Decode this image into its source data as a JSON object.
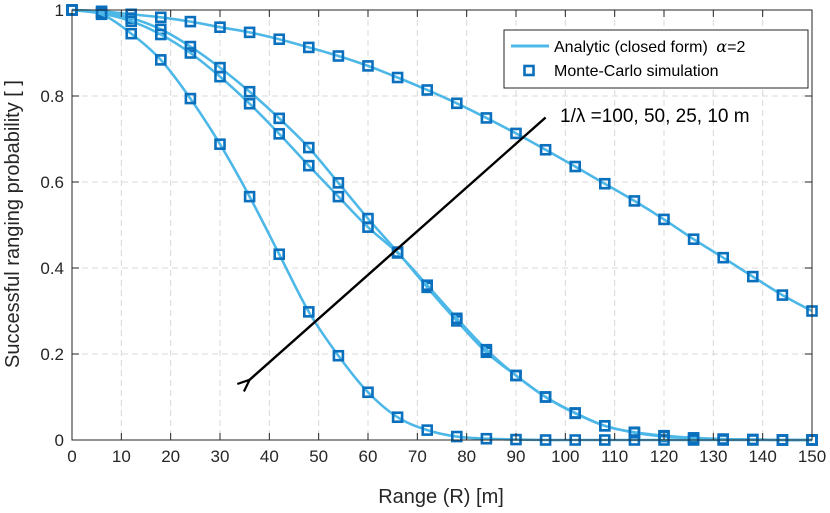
{
  "chart_data": {
    "type": "line",
    "title": "",
    "xlabel": "Range (R) [m]",
    "ylabel": "Successful ranging probability [ ]",
    "xlim": [
      0,
      150
    ],
    "ylim": [
      0,
      1
    ],
    "grid": true,
    "xticks": [
      0,
      10,
      20,
      30,
      40,
      50,
      60,
      70,
      80,
      90,
      100,
      110,
      120,
      130,
      140,
      150
    ],
    "yticks": [
      0,
      0.2,
      0.4,
      0.6,
      0.8,
      1
    ],
    "ytick_labels": [
      "0",
      "0.2",
      "0.4",
      "0.6",
      "0.8",
      "1"
    ],
    "colors": {
      "line": "#4db8e8",
      "marker": "#0a6fbd",
      "axis": "#262626",
      "grid": "#d9d9d9"
    },
    "legend": {
      "position": "top-right",
      "entries": [
        {
          "label": "Analytic (closed form)",
          "symbol": "α",
          "suffix": "=2",
          "style": "line"
        },
        {
          "label": "Monte-Carlo simulation",
          "style": "square-marker"
        }
      ]
    },
    "annotation": {
      "text": "1/λ =100, 50, 25, 10 m",
      "arrow_from": [
        96,
        0.75
      ],
      "arrow_to": [
        36,
        0.14
      ]
    },
    "series": [
      {
        "name": "1/λ = 100 m",
        "x": [
          0,
          6,
          12,
          18,
          24,
          30,
          36,
          42,
          48,
          54,
          60,
          66,
          72,
          78,
          84,
          90,
          96,
          102,
          108,
          114,
          120,
          126,
          132,
          138,
          144,
          150
        ],
        "values": [
          1.0,
          0.997,
          0.99,
          0.983,
          0.973,
          0.96,
          0.948,
          0.932,
          0.913,
          0.893,
          0.87,
          0.843,
          0.814,
          0.783,
          0.749,
          0.713,
          0.675,
          0.636,
          0.596,
          0.556,
          0.513,
          0.467,
          0.424,
          0.38,
          0.337,
          0.3
        ]
      },
      {
        "name": "1/λ = 50 m",
        "x": [
          0,
          6,
          12,
          18,
          24,
          30,
          36,
          42,
          48,
          54,
          60,
          66,
          72,
          78,
          84,
          90,
          96,
          102,
          108,
          114,
          120,
          126,
          132,
          138,
          144,
          150
        ],
        "values": [
          1.0,
          0.995,
          0.981,
          0.955,
          0.915,
          0.866,
          0.81,
          0.748,
          0.68,
          0.598,
          0.515,
          0.437,
          0.355,
          0.277,
          0.204,
          0.15,
          0.1,
          0.063,
          0.033,
          0.018,
          0.01,
          0.005,
          0.002,
          0.001,
          0.0,
          0.0
        ]
      },
      {
        "name": "1/λ = 25 m",
        "x": [
          0,
          6,
          12,
          18,
          24,
          30,
          36,
          42,
          48,
          54,
          60,
          66,
          72,
          78,
          84,
          90,
          96,
          102,
          108,
          114,
          120,
          126,
          132,
          138,
          144,
          150
        ],
        "values": [
          1.0,
          0.992,
          0.974,
          0.943,
          0.9,
          0.845,
          0.782,
          0.712,
          0.638,
          0.566,
          0.495,
          0.435,
          0.36,
          0.283,
          0.21,
          0.15,
          0.1,
          0.062,
          0.033,
          0.017,
          0.008,
          0.004,
          0.002,
          0.001,
          0.0,
          0.0
        ]
      },
      {
        "name": "1/λ = 10 m",
        "x": [
          0,
          6,
          12,
          18,
          24,
          30,
          36,
          42,
          48,
          54,
          60,
          66,
          72,
          78,
          84,
          90,
          96,
          102,
          108,
          114,
          120,
          126,
          132,
          138,
          144,
          150
        ],
        "values": [
          1.0,
          0.99,
          0.945,
          0.884,
          0.794,
          0.688,
          0.566,
          0.432,
          0.298,
          0.196,
          0.111,
          0.053,
          0.023,
          0.008,
          0.003,
          0.001,
          0.0,
          0.0,
          0.0,
          0.0,
          0.0,
          0.0,
          0.0,
          0.0,
          0.0,
          0.0
        ]
      }
    ]
  }
}
